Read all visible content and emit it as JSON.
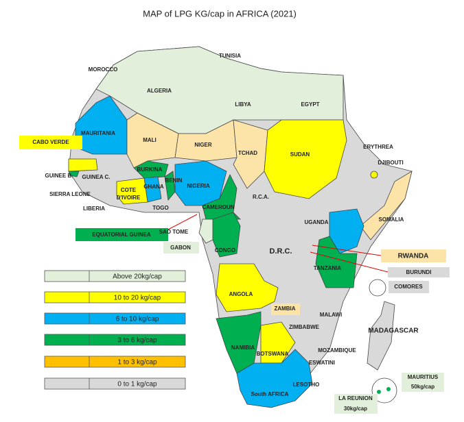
{
  "title": "MAP of LPG KG/cap in AFRICA (2021)",
  "countries": [
    "TUNISIA",
    "MOROCCO",
    "ALGERIA",
    "LIBYA",
    "EGYPT",
    "MAURITANIA",
    "MALI",
    "NIGER",
    "TCHAD",
    "SUDAN",
    "ERYTHREA",
    "DJIBOUTI",
    "GUINEE B.",
    "GUINEA C.",
    "BURKINA",
    "BENIN",
    "NIGERIA",
    "GHANA",
    "COTE",
    "D'IVOIRE",
    "SIERRA LEONE",
    "LIBERIA",
    "TOGO",
    "CAMEROUN",
    "R.C.A.",
    "UGANDA",
    "SOMALIA",
    "SAO TOME",
    "GABON",
    "CONGO",
    "D.R.C.",
    "TANZANIA",
    "ANGOLA",
    "ZAMBIA",
    "MALAWI",
    "ZIMBABWE",
    "MADAGASCAR",
    "NAMIBIA",
    "BOTSWANA",
    "MOZAMBIQUE",
    "ESWATINI",
    "LESOTHO",
    "South AFRICA"
  ],
  "callouts": [
    "CABO VERDE",
    "EQUATORIAL GUINEA",
    "RWANDA",
    "BURUNDI",
    "COMORES",
    "MAURITIUS",
    "50kg/cap",
    "LA REUNION",
    "30kg/cap"
  ],
  "legend": [
    "Above 20kg/cap",
    "10 to 20 kg/cap",
    "6 to 10 kg/cap",
    "3 to 6 kg/cap",
    "1 to 3 kg/cap",
    "0 to 1 kg/cap"
  ]
}
